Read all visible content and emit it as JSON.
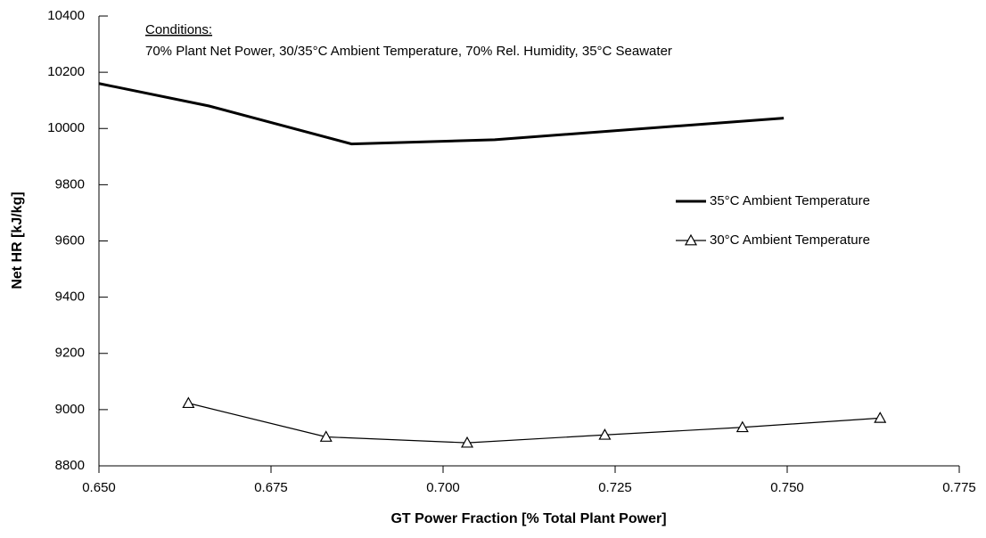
{
  "chart_data": {
    "type": "line",
    "xlabel": "GT Power Fraction [% Total Plant Power]",
    "ylabel": "Net HR [kJ/kg]",
    "annotations": [
      "Conditions:",
      "70% Plant Net Power, 30/35°C Ambient Temperature, 70% Rel. Humidity, 35°C Seawater"
    ],
    "xlim": [
      0.65,
      0.775
    ],
    "xticks": [
      {
        "value": 0.65,
        "label": "0.650"
      },
      {
        "value": 0.675,
        "label": "0.675"
      },
      {
        "value": 0.7,
        "label": "0.700"
      },
      {
        "value": 0.725,
        "label": "0.725"
      },
      {
        "value": 0.75,
        "label": "0.750"
      },
      {
        "value": 0.775,
        "label": "0.775"
      }
    ],
    "ylim": [
      8800,
      10400
    ],
    "yticks": [
      8800,
      9000,
      9200,
      9400,
      9600,
      9800,
      10000,
      10200,
      10400
    ],
    "grid": false,
    "legend": "right",
    "series": [
      {
        "name": "35°C Ambient Temperature",
        "color": "#000000",
        "marker": "none",
        "x": [
          0.65,
          0.666,
          0.6867,
          0.7075,
          0.7495
        ],
        "values": [
          10160,
          10080,
          9945,
          9960,
          10037
        ]
      },
      {
        "name": "30°C Ambient Temperature",
        "color": "#000000",
        "marker": "triangle",
        "x": [
          0.663,
          0.683,
          0.7035,
          0.7235,
          0.7435,
          0.7635
        ],
        "values": [
          9023,
          8903,
          8882,
          8910,
          8937,
          8970
        ]
      }
    ]
  }
}
